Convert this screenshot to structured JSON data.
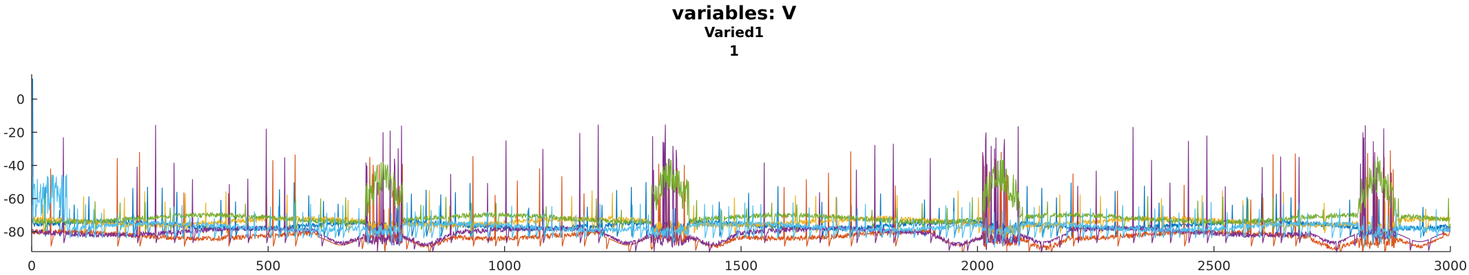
{
  "chart_data": {
    "type": "line",
    "title": "variables: V",
    "subtitle": "Varied1",
    "subtitle2": "1",
    "xlabel": "",
    "ylabel": "",
    "xlim": [
      0,
      3000
    ],
    "ylim": [
      -92,
      15
    ],
    "xticks": [
      0,
      500,
      1000,
      1500,
      2000,
      2500,
      3000
    ],
    "yticks": [
      0,
      -20,
      -40,
      -60,
      -80
    ],
    "grid": false,
    "legend": "none",
    "bursts": [
      {
        "t": 745,
        "series": "green"
      },
      {
        "t": 1350,
        "series": "green"
      },
      {
        "t": 2050,
        "series": "green"
      },
      {
        "t": 2845,
        "series": "green"
      }
    ],
    "series": [
      {
        "color": "#0072BD",
        "baseline": -76,
        "spike_peak": -50,
        "period": 31,
        "phase": 3
      },
      {
        "color": "#D95319",
        "baseline": -82,
        "spike_peak": -30,
        "period": 47,
        "phase": 7
      },
      {
        "color": "#EDB120",
        "baseline": -74,
        "spike_peak": -55,
        "period": 43,
        "phase": 19
      },
      {
        "color": "#7E2F8E",
        "baseline": -80,
        "spike_peak": -15,
        "period": 39,
        "phase": 11
      },
      {
        "color": "#77AC30",
        "baseline": -72,
        "spike_peak": -58,
        "period": 53,
        "phase": 25
      },
      {
        "color": "#4DBEEE",
        "baseline": -77,
        "spike_peak": -62,
        "period": 17,
        "phase": 5
      }
    ]
  }
}
